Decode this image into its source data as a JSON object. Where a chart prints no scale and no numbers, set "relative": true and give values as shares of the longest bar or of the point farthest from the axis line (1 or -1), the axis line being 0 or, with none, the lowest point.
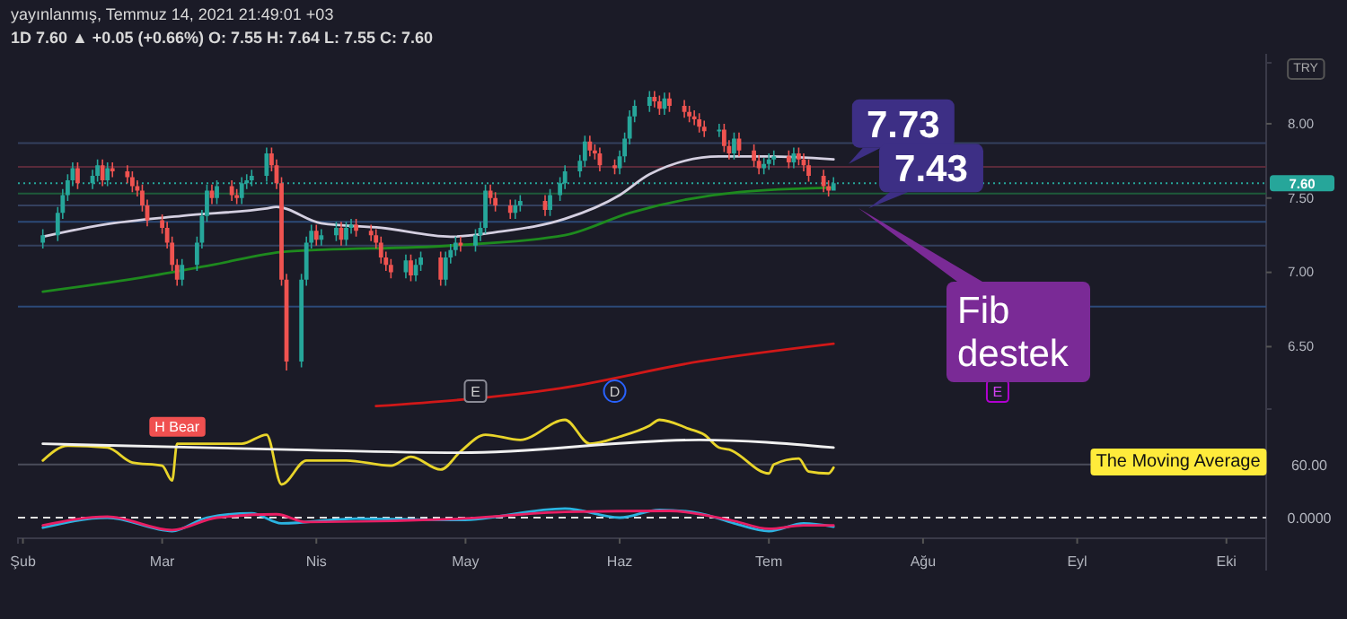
{
  "chart_data": [
    {
      "type": "candlestick",
      "title": "yayınlanmış, Temmuz 14, 2021 21:49:01 +03",
      "subtitle": "1D  7.60 ▲ +0.05 (+0.66%) O: 7.55 H: 7.64 L: 7.55 C: 7.60",
      "x": [
        "2021-02-05",
        "2021-02-08",
        "2021-02-09",
        "2021-02-10",
        "2021-02-11",
        "2021-02-12",
        "2021-02-15",
        "2021-02-16",
        "2021-02-17",
        "2021-02-18",
        "2021-02-19",
        "2021-02-22",
        "2021-02-23",
        "2021-02-24",
        "2021-02-25",
        "2021-02-26",
        "2021-03-01",
        "2021-03-02",
        "2021-03-03",
        "2021-03-04",
        "2021-03-05",
        "2021-03-08",
        "2021-03-09",
        "2021-03-10",
        "2021-03-11",
        "2021-03-12",
        "2021-03-15",
        "2021-03-16",
        "2021-03-17",
        "2021-03-18",
        "2021-03-19",
        "2021-03-22",
        "2021-03-23",
        "2021-03-24",
        "2021-03-25",
        "2021-03-26",
        "2021-03-29",
        "2021-03-30",
        "2021-03-31",
        "2021-04-01",
        "2021-04-02",
        "2021-04-05",
        "2021-04-06",
        "2021-04-07",
        "2021-04-08",
        "2021-04-09",
        "2021-04-12",
        "2021-04-13",
        "2021-04-14",
        "2021-04-15",
        "2021-04-16",
        "2021-04-19",
        "2021-04-20",
        "2021-04-21",
        "2021-04-22",
        "2021-04-26",
        "2021-04-27",
        "2021-04-28",
        "2021-04-29",
        "2021-04-30",
        "2021-05-03",
        "2021-05-04",
        "2021-05-05",
        "2021-05-06",
        "2021-05-07",
        "2021-05-10",
        "2021-05-11",
        "2021-05-12",
        "2021-05-17",
        "2021-05-18",
        "2021-05-20",
        "2021-05-21",
        "2021-05-24",
        "2021-05-25",
        "2021-05-26",
        "2021-05-27",
        "2021-05-28",
        "2021-05-31",
        "2021-06-01",
        "2021-06-02",
        "2021-06-03",
        "2021-06-04",
        "2021-06-07",
        "2021-06-08",
        "2021-06-09",
        "2021-06-10",
        "2021-06-11",
        "2021-06-14",
        "2021-06-15",
        "2021-06-16",
        "2021-06-17",
        "2021-06-18",
        "2021-06-21",
        "2021-06-22",
        "2021-06-23",
        "2021-06-24",
        "2021-06-25",
        "2021-06-28",
        "2021-06-29",
        "2021-06-30",
        "2021-07-01",
        "2021-07-02",
        "2021-07-05",
        "2021-07-06",
        "2021-07-07",
        "2021-07-08",
        "2021-07-09",
        "2021-07-12",
        "2021-07-13",
        "2021-07-14"
      ],
      "ohlc": [
        [
          7.2,
          7.29,
          7.16,
          7.25
        ],
        [
          7.25,
          7.44,
          7.21,
          7.4
        ],
        [
          7.4,
          7.56,
          7.36,
          7.52
        ],
        [
          7.52,
          7.66,
          7.48,
          7.62
        ],
        [
          7.62,
          7.74,
          7.58,
          7.7
        ],
        [
          7.7,
          7.74,
          7.56,
          7.6
        ],
        [
          7.6,
          7.69,
          7.56,
          7.65
        ],
        [
          7.65,
          7.76,
          7.61,
          7.72
        ],
        [
          7.72,
          7.76,
          7.58,
          7.62
        ],
        [
          7.62,
          7.74,
          7.58,
          7.7
        ],
        [
          7.7,
          7.74,
          7.64,
          7.68
        ],
        [
          7.68,
          7.72,
          7.6,
          7.64
        ],
        [
          7.64,
          7.68,
          7.54,
          7.58
        ],
        [
          7.58,
          7.62,
          7.51,
          7.55
        ],
        [
          7.55,
          7.59,
          7.41,
          7.45
        ],
        [
          7.45,
          7.49,
          7.31,
          7.35
        ],
        [
          7.35,
          7.39,
          7.26,
          7.3
        ],
        [
          7.3,
          7.34,
          7.16,
          7.2
        ],
        [
          7.2,
          7.24,
          7.01,
          7.05
        ],
        [
          7.05,
          7.09,
          6.91,
          6.95
        ],
        [
          6.95,
          7.09,
          6.91,
          7.05
        ],
        [
          7.05,
          7.24,
          7.01,
          7.2
        ],
        [
          7.2,
          7.42,
          7.16,
          7.38
        ],
        [
          7.38,
          7.59,
          7.34,
          7.55
        ],
        [
          7.55,
          7.59,
          7.46,
          7.5
        ],
        [
          7.5,
          7.62,
          7.46,
          7.58
        ],
        [
          7.58,
          7.62,
          7.48,
          7.52
        ],
        [
          7.52,
          7.56,
          7.46,
          7.5
        ],
        [
          7.5,
          7.64,
          7.46,
          7.6
        ],
        [
          7.6,
          7.66,
          7.56,
          7.62
        ],
        [
          7.62,
          7.69,
          7.58,
          7.65
        ],
        [
          7.65,
          7.84,
          7.61,
          7.8
        ],
        [
          7.8,
          7.84,
          7.68,
          7.72
        ],
        [
          7.72,
          7.76,
          7.56,
          7.6
        ],
        [
          7.6,
          7.64,
          6.91,
          6.95
        ],
        [
          6.95,
          6.99,
          6.34,
          6.4
        ],
        [
          6.4,
          6.99,
          6.36,
          6.95
        ],
        [
          6.95,
          7.24,
          6.91,
          7.2
        ],
        [
          7.2,
          7.32,
          7.16,
          7.28
        ],
        [
          7.28,
          7.32,
          7.18,
          7.22
        ],
        [
          7.22,
          7.29,
          7.18,
          7.25
        ],
        [
          7.25,
          7.34,
          7.21,
          7.3
        ],
        [
          7.3,
          7.34,
          7.18,
          7.22
        ],
        [
          7.22,
          7.34,
          7.18,
          7.3
        ],
        [
          7.3,
          7.36,
          7.26,
          7.32
        ],
        [
          7.32,
          7.36,
          7.24,
          7.28
        ],
        [
          7.28,
          7.32,
          7.21,
          7.25
        ],
        [
          7.25,
          7.29,
          7.16,
          7.2
        ],
        [
          7.2,
          7.24,
          7.06,
          7.1
        ],
        [
          7.1,
          7.14,
          7.01,
          7.05
        ],
        [
          7.05,
          7.09,
          6.96,
          7.0
        ],
        [
          7.0,
          7.12,
          6.96,
          7.08
        ],
        [
          7.08,
          7.12,
          6.94,
          6.98
        ],
        [
          6.98,
          7.09,
          6.94,
          7.05
        ],
        [
          7.05,
          7.14,
          7.01,
          7.1
        ],
        [
          7.1,
          7.14,
          6.91,
          6.95
        ],
        [
          6.95,
          7.14,
          6.91,
          7.1
        ],
        [
          7.1,
          7.19,
          7.06,
          7.15
        ],
        [
          7.15,
          7.24,
          7.11,
          7.2
        ],
        [
          7.2,
          7.24,
          7.14,
          7.18
        ],
        [
          7.18,
          7.29,
          7.14,
          7.25
        ],
        [
          7.25,
          7.34,
          7.21,
          7.3
        ],
        [
          7.3,
          7.59,
          7.26,
          7.55
        ],
        [
          7.55,
          7.59,
          7.46,
          7.5
        ],
        [
          7.5,
          7.54,
          7.41,
          7.45
        ],
        [
          7.45,
          7.49,
          7.36,
          7.4
        ],
        [
          7.4,
          7.49,
          7.36,
          7.45
        ],
        [
          7.45,
          7.52,
          7.41,
          7.48
        ],
        [
          7.48,
          7.52,
          7.38,
          7.42
        ],
        [
          7.42,
          7.56,
          7.38,
          7.52
        ],
        [
          7.52,
          7.64,
          7.48,
          7.6
        ],
        [
          7.6,
          7.72,
          7.56,
          7.68
        ],
        [
          7.68,
          7.79,
          7.64,
          7.75
        ],
        [
          7.75,
          7.92,
          7.71,
          7.88
        ],
        [
          7.88,
          7.92,
          7.78,
          7.82
        ],
        [
          7.82,
          7.86,
          7.76,
          7.8
        ],
        [
          7.8,
          7.84,
          7.68,
          7.72
        ],
        [
          7.72,
          7.76,
          7.66,
          7.7
        ],
        [
          7.7,
          7.82,
          7.66,
          7.78
        ],
        [
          7.78,
          7.94,
          7.74,
          7.9
        ],
        [
          7.9,
          8.09,
          7.86,
          8.05
        ],
        [
          8.05,
          8.16,
          8.01,
          8.12
        ],
        [
          8.12,
          8.22,
          8.08,
          8.18
        ],
        [
          8.18,
          8.22,
          8.11,
          8.15
        ],
        [
          8.15,
          8.19,
          8.06,
          8.1
        ],
        [
          8.1,
          8.21,
          8.06,
          8.17
        ],
        [
          8.17,
          8.21,
          8.08,
          8.12
        ],
        [
          8.12,
          8.16,
          8.04,
          8.08
        ],
        [
          8.08,
          8.12,
          8.01,
          8.05
        ],
        [
          8.05,
          8.09,
          7.99,
          8.03
        ],
        [
          8.03,
          8.07,
          7.94,
          7.98
        ],
        [
          7.98,
          8.02,
          7.91,
          7.95
        ],
        [
          7.95,
          8.0,
          7.91,
          7.96
        ],
        [
          7.96,
          8.0,
          7.81,
          7.85
        ],
        [
          7.85,
          7.89,
          7.76,
          7.8
        ],
        [
          7.8,
          7.94,
          7.76,
          7.9
        ],
        [
          7.9,
          7.94,
          7.78,
          7.82
        ],
        [
          7.82,
          7.86,
          7.71,
          7.75
        ],
        [
          7.75,
          7.79,
          7.66,
          7.7
        ],
        [
          7.7,
          7.77,
          7.66,
          7.73
        ],
        [
          7.73,
          7.8,
          7.69,
          7.76
        ],
        [
          7.76,
          7.82,
          7.72,
          7.78
        ],
        [
          7.78,
          7.82,
          7.7,
          7.74
        ],
        [
          7.74,
          7.84,
          7.7,
          7.8
        ],
        [
          7.8,
          7.84,
          7.72,
          7.76
        ],
        [
          7.76,
          7.8,
          7.68,
          7.72
        ],
        [
          7.72,
          7.76,
          7.61,
          7.65
        ],
        [
          7.65,
          7.69,
          7.54,
          7.58
        ],
        [
          7.58,
          7.62,
          7.51,
          7.55
        ],
        [
          7.55,
          7.64,
          7.55,
          7.6
        ]
      ],
      "series": [
        {
          "type": "line",
          "color": "#d4cfe0",
          "x": [
            "2021-02-05",
            "2021-02-17",
            "2021-03-05",
            "2021-03-22",
            "2021-03-24",
            "2021-04-02",
            "2021-04-14",
            "2021-04-28",
            "2021-05-07",
            "2021-05-21",
            "2021-06-01",
            "2021-06-07",
            "2021-06-21",
            "2021-07-01",
            "2021-07-14"
          ],
          "values": [
            7.24,
            7.32,
            7.38,
            7.43,
            7.44,
            7.33,
            7.3,
            7.24,
            7.27,
            7.36,
            7.52,
            7.66,
            7.78,
            7.78,
            7.76
          ]
        },
        {
          "type": "line",
          "color": "#1e8a1e",
          "x": [
            "2021-02-05",
            "2021-02-24",
            "2021-03-11",
            "2021-03-26",
            "2021-04-28",
            "2021-05-21",
            "2021-06-03",
            "2021-06-25",
            "2021-07-14"
          ],
          "values": [
            6.87,
            6.96,
            7.05,
            7.14,
            7.18,
            7.25,
            7.4,
            7.54,
            7.57
          ]
        },
        {
          "type": "line",
          "color": "#d01818",
          "x": [
            "2021-04-13",
            "2021-05-20",
            "2021-06-17",
            "2021-07-14"
          ],
          "values": [
            6.1,
            6.22,
            6.4,
            6.52
          ]
        }
      ],
      "xlim": [
        "2021-01-31",
        "2021-10-09"
      ],
      "ylim": [
        6.08,
        8.41
      ],
      "yticks": [
        {
          "value": 6.5,
          "label": "6.50"
        },
        {
          "value": 7,
          "label": "7.00"
        },
        {
          "value": 7.5,
          "label": "7.50"
        },
        {
          "value": 8,
          "label": "8.00"
        }
      ],
      "tick_labels": "y",
      "ref_lines": [
        {
          "axis": "y",
          "value": 7.87,
          "color": "#34405e"
        },
        {
          "axis": "y",
          "value": 7.71,
          "color": "#5a2a3a"
        },
        {
          "axis": "y",
          "value": 7.53,
          "color": "#1e5a3a"
        },
        {
          "axis": "y",
          "value": 7.45,
          "color": "#34405e"
        },
        {
          "axis": "y",
          "value": 7.34,
          "color": "#2c4a78"
        },
        {
          "axis": "y",
          "value": 7.18,
          "color": "#34405e"
        },
        {
          "axis": "y",
          "value": 6.77,
          "color": "#2c4a78"
        },
        {
          "axis": "y",
          "value": 7.6,
          "label": "7.60",
          "color": "#26a69a",
          "line_style": "dotted"
        }
      ],
      "annotations": [
        {
          "text": "7.73",
          "x": "2021-07-17",
          "y": 7.73
        },
        {
          "text": "7.43",
          "x": "2021-07-21",
          "y": 7.43
        },
        {
          "text": "E",
          "x": "2021-05-03",
          "y": 6.2
        },
        {
          "text": "D",
          "x": "2021-05-31",
          "y": 6.2
        },
        {
          "text": "E",
          "x": "2021-08-16",
          "y": 6.2
        },
        "Fib destek",
        "TRY"
      ]
    },
    {
      "type": "line",
      "relative": true,
      "xlim": [
        "2021-01-31",
        "2021-10-09"
      ],
      "series": [
        {
          "color": "#e8d42a",
          "x": [
            "2021-02-05",
            "2021-02-10",
            "2021-02-18",
            "2021-02-23",
            "2021-03-01",
            "2021-03-03",
            "2021-03-04",
            "2021-03-17",
            "2021-03-22",
            "2021-03-25",
            "2021-03-30",
            "2021-04-07",
            "2021-04-16",
            "2021-04-20",
            "2021-04-26",
            "2021-04-30",
            "2021-05-05",
            "2021-05-12",
            "2021-05-21",
            "2021-05-26",
            "2021-06-01",
            "2021-06-07",
            "2021-06-09",
            "2021-06-15",
            "2021-06-18",
            "2021-06-21",
            "2021-06-23",
            "2021-07-01",
            "2021-07-02",
            "2021-07-07",
            "2021-07-09",
            "2021-07-13",
            "2021-07-14"
          ],
          "values": [
            0.37,
            0.6,
            0.57,
            0.34,
            0.29,
            0.06,
            0.63,
            0.63,
            0.77,
            0,
            0.37,
            0.37,
            0.29,
            0.43,
            0.23,
            0.51,
            0.77,
            0.69,
            1,
            0.63,
            0.74,
            0.91,
            1,
            0.86,
            0.77,
            0.57,
            0.54,
            0.17,
            0.31,
            0.4,
            0.2,
            0.17,
            0.26
          ]
        },
        {
          "color": "#f0f0f0",
          "x": [
            "2021-02-05",
            "2021-03-26",
            "2021-04-30",
            "2021-06-17",
            "2021-07-14"
          ],
          "values": [
            0.63,
            0.54,
            0.49,
            0.69,
            0.57
          ]
        }
      ],
      "ref_lines": [
        {
          "axis": "y",
          "value": 0.31,
          "color": "#4a4d5a"
        }
      ],
      "annotations": [
        {
          "text": "H Bear",
          "x": "2021-03-04",
          "y": 0.63
        },
        "60.00",
        "The Moving Average"
      ]
    },
    {
      "type": "line",
      "relative": true,
      "tick_labels": "x",
      "xlim": [
        "2021-01-31",
        "2021-10-09"
      ],
      "xticks": [
        {
          "value": "2021-02",
          "label": "Şub"
        },
        {
          "value": "2021-03",
          "label": "Mar"
        },
        {
          "value": "2021-04",
          "label": "Nis"
        },
        {
          "value": "2021-05",
          "label": "May"
        },
        {
          "value": "2021-06",
          "label": "Haz"
        },
        {
          "value": "2021-07",
          "label": "Tem"
        },
        {
          "value": "2021-08",
          "label": "Ağu"
        },
        {
          "value": "2021-09",
          "label": "Eyl"
        },
        {
          "value": "2021-10",
          "label": "Eki"
        }
      ],
      "series": [
        {
          "color": "#2bb3e0",
          "x": [
            "2021-02-05",
            "2021-02-18",
            "2021-03-03",
            "2021-03-10",
            "2021-03-19",
            "2021-03-25",
            "2021-04-09",
            "2021-04-30",
            "2021-05-21",
            "2021-06-01",
            "2021-06-09",
            "2021-06-17",
            "2021-06-24",
            "2021-07-01",
            "2021-07-08",
            "2021-07-14"
          ],
          "values": [
            -0.75,
            0,
            -1,
            0,
            0.33,
            -0.42,
            -0.08,
            -0.17,
            0.67,
            0,
            0.58,
            0.33,
            -0.42,
            -1,
            -0.42,
            -0.67
          ]
        },
        {
          "color": "#e91e63",
          "x": [
            "2021-02-05",
            "2021-02-18",
            "2021-03-03",
            "2021-03-12",
            "2021-03-24",
            "2021-03-30",
            "2021-04-30",
            "2021-05-21",
            "2021-06-11",
            "2021-06-24",
            "2021-07-01",
            "2021-07-08",
            "2021-07-14"
          ],
          "values": [
            -0.58,
            0.08,
            -0.92,
            0,
            0.25,
            -0.33,
            -0.08,
            0.42,
            0.5,
            -0.25,
            -0.83,
            -0.58,
            -0.58
          ]
        }
      ],
      "ref_lines": [
        {
          "axis": "y",
          "value": 0,
          "label": "0.0000",
          "color": "#e0e0e0",
          "line_style": "dashed"
        }
      ]
    }
  ]
}
